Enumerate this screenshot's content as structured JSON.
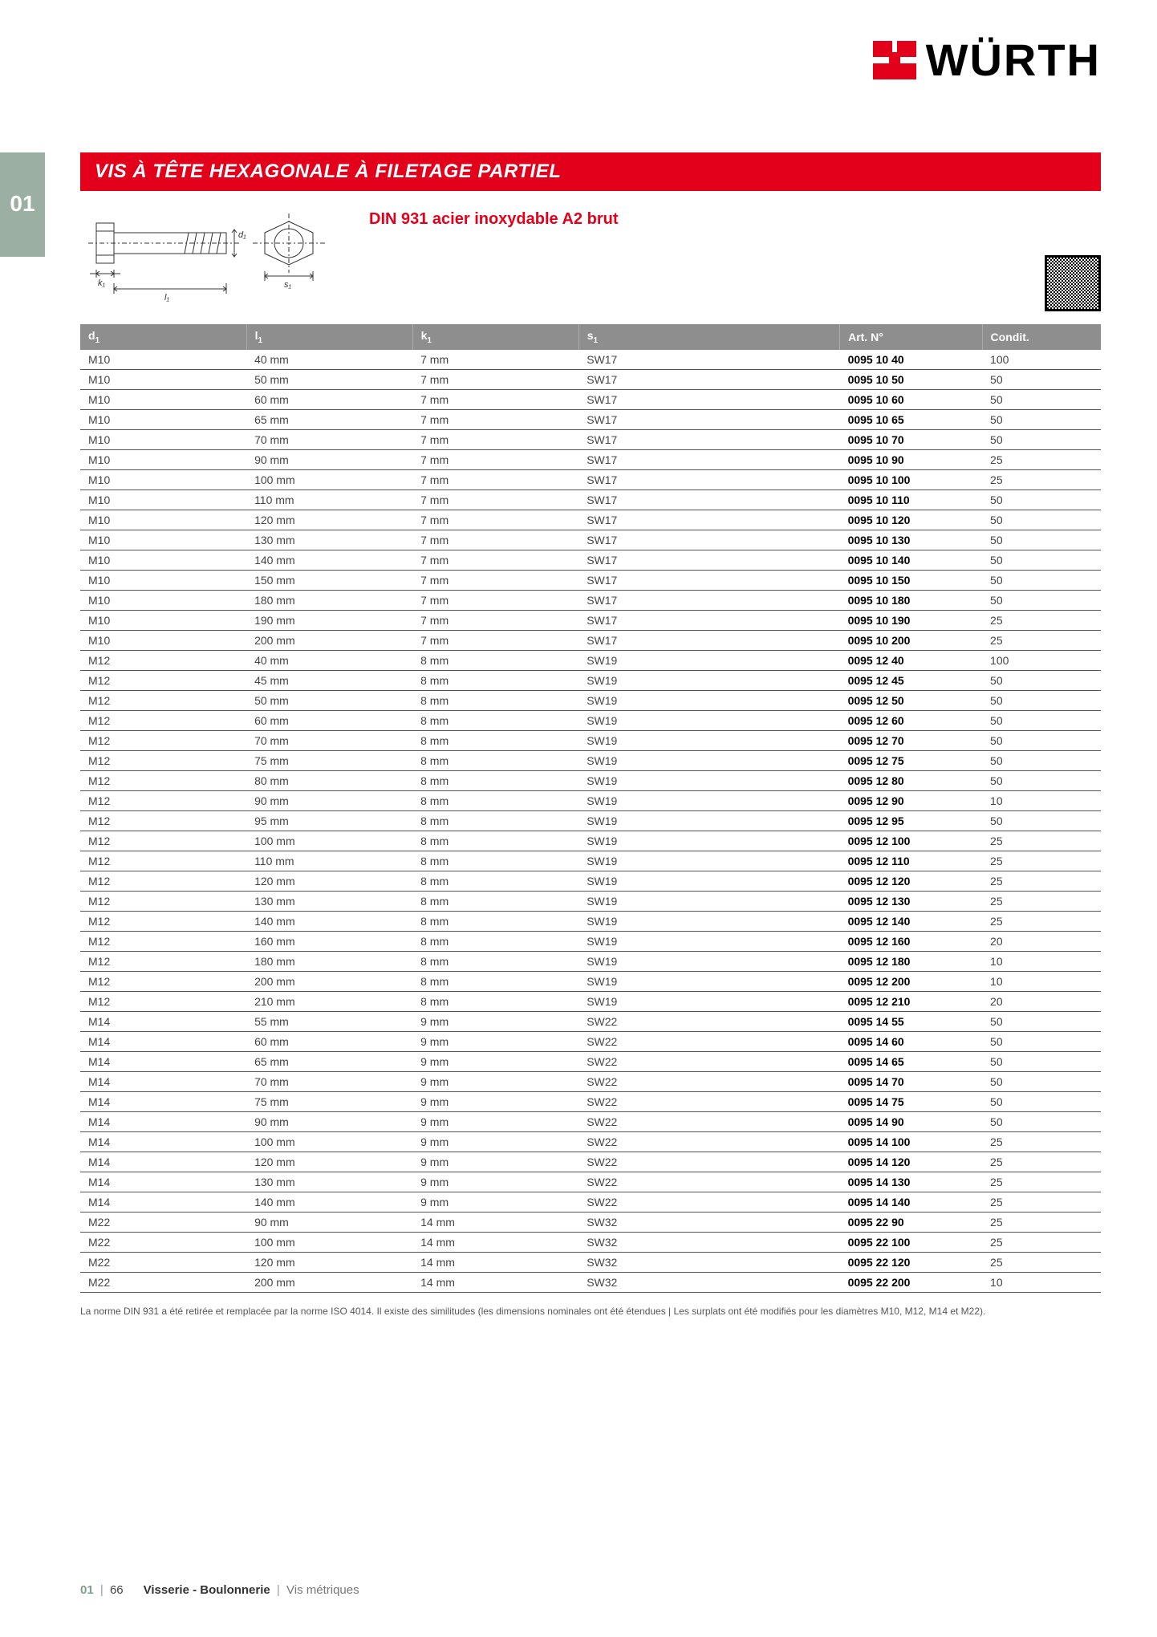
{
  "brand": "WÜRTH",
  "sideTab": "01",
  "titleBar": "VIS À TÊTE HEXAGONALE À FILETAGE PARTIEL",
  "subtitle": "DIN 931 acier inoxydable A2 brut",
  "colors": {
    "brandRed": "#e2001a",
    "headerGrey": "#8e8e8e",
    "tabGreen": "#9bb0a2",
    "text": "#333333",
    "rowBorder": "#555555"
  },
  "table": {
    "headers": {
      "d1": "d",
      "d1_sub": "1",
      "l1": "l",
      "l1_sub": "1",
      "k1": "k",
      "k1_sub": "1",
      "s1": "s",
      "s1_sub": "1",
      "art": "Art. N°",
      "cond": "Condit."
    },
    "rows": [
      {
        "d1": "M10",
        "l1": "40 mm",
        "k1": "7 mm",
        "s1": "SW17",
        "art": "0095 10  40",
        "cond": "100"
      },
      {
        "d1": "M10",
        "l1": "50 mm",
        "k1": "7 mm",
        "s1": "SW17",
        "art": "0095 10  50",
        "cond": "50"
      },
      {
        "d1": "M10",
        "l1": "60 mm",
        "k1": "7 mm",
        "s1": "SW17",
        "art": "0095 10  60",
        "cond": "50"
      },
      {
        "d1": "M10",
        "l1": "65 mm",
        "k1": "7 mm",
        "s1": "SW17",
        "art": "0095 10  65",
        "cond": "50"
      },
      {
        "d1": "M10",
        "l1": "70 mm",
        "k1": "7 mm",
        "s1": "SW17",
        "art": "0095 10  70",
        "cond": "50"
      },
      {
        "d1": "M10",
        "l1": "90 mm",
        "k1": "7 mm",
        "s1": "SW17",
        "art": "0095 10  90",
        "cond": "25"
      },
      {
        "d1": "M10",
        "l1": "100 mm",
        "k1": "7 mm",
        "s1": "SW17",
        "art": "0095 10  100",
        "cond": "25"
      },
      {
        "d1": "M10",
        "l1": "110 mm",
        "k1": "7 mm",
        "s1": "SW17",
        "art": "0095 10  110",
        "cond": "50"
      },
      {
        "d1": "M10",
        "l1": "120 mm",
        "k1": "7 mm",
        "s1": "SW17",
        "art": "0095 10  120",
        "cond": "50"
      },
      {
        "d1": "M10",
        "l1": "130 mm",
        "k1": "7 mm",
        "s1": "SW17",
        "art": "0095 10  130",
        "cond": "50"
      },
      {
        "d1": "M10",
        "l1": "140 mm",
        "k1": "7 mm",
        "s1": "SW17",
        "art": "0095 10  140",
        "cond": "50"
      },
      {
        "d1": "M10",
        "l1": "150 mm",
        "k1": "7 mm",
        "s1": "SW17",
        "art": "0095 10  150",
        "cond": "50"
      },
      {
        "d1": "M10",
        "l1": "180 mm",
        "k1": "7 mm",
        "s1": "SW17",
        "art": "0095 10  180",
        "cond": "50"
      },
      {
        "d1": "M10",
        "l1": "190 mm",
        "k1": "7 mm",
        "s1": "SW17",
        "art": "0095 10  190",
        "cond": "25"
      },
      {
        "d1": "M10",
        "l1": "200 mm",
        "k1": "7 mm",
        "s1": "SW17",
        "art": "0095 10  200",
        "cond": "25"
      },
      {
        "d1": "M12",
        "l1": "40 mm",
        "k1": "8 mm",
        "s1": "SW19",
        "art": "0095 12  40",
        "cond": "100"
      },
      {
        "d1": "M12",
        "l1": "45 mm",
        "k1": "8 mm",
        "s1": "SW19",
        "art": "0095 12  45",
        "cond": "50"
      },
      {
        "d1": "M12",
        "l1": "50 mm",
        "k1": "8 mm",
        "s1": "SW19",
        "art": "0095 12  50",
        "cond": "50"
      },
      {
        "d1": "M12",
        "l1": "60 mm",
        "k1": "8 mm",
        "s1": "SW19",
        "art": "0095 12  60",
        "cond": "50"
      },
      {
        "d1": "M12",
        "l1": "70 mm",
        "k1": "8 mm",
        "s1": "SW19",
        "art": "0095 12  70",
        "cond": "50"
      },
      {
        "d1": "M12",
        "l1": "75 mm",
        "k1": "8 mm",
        "s1": "SW19",
        "art": "0095 12  75",
        "cond": "50"
      },
      {
        "d1": "M12",
        "l1": "80 mm",
        "k1": "8 mm",
        "s1": "SW19",
        "art": "0095 12  80",
        "cond": "50"
      },
      {
        "d1": "M12",
        "l1": "90 mm",
        "k1": "8 mm",
        "s1": "SW19",
        "art": "0095 12  90",
        "cond": "10"
      },
      {
        "d1": "M12",
        "l1": "95 mm",
        "k1": "8 mm",
        "s1": "SW19",
        "art": "0095 12  95",
        "cond": "50"
      },
      {
        "d1": "M12",
        "l1": "100 mm",
        "k1": "8 mm",
        "s1": "SW19",
        "art": "0095 12  100",
        "cond": "25"
      },
      {
        "d1": "M12",
        "l1": "110 mm",
        "k1": "8 mm",
        "s1": "SW19",
        "art": "0095 12  110",
        "cond": "25"
      },
      {
        "d1": "M12",
        "l1": "120 mm",
        "k1": "8 mm",
        "s1": "SW19",
        "art": "0095 12  120",
        "cond": "25"
      },
      {
        "d1": "M12",
        "l1": "130 mm",
        "k1": "8 mm",
        "s1": "SW19",
        "art": "0095 12  130",
        "cond": "25"
      },
      {
        "d1": "M12",
        "l1": "140 mm",
        "k1": "8 mm",
        "s1": "SW19",
        "art": "0095 12  140",
        "cond": "25"
      },
      {
        "d1": "M12",
        "l1": "160 mm",
        "k1": "8 mm",
        "s1": "SW19",
        "art": "0095 12  160",
        "cond": "20"
      },
      {
        "d1": "M12",
        "l1": "180 mm",
        "k1": "8 mm",
        "s1": "SW19",
        "art": "0095 12  180",
        "cond": "10"
      },
      {
        "d1": "M12",
        "l1": "200 mm",
        "k1": "8 mm",
        "s1": "SW19",
        "art": "0095 12  200",
        "cond": "10"
      },
      {
        "d1": "M12",
        "l1": "210 mm",
        "k1": "8 mm",
        "s1": "SW19",
        "art": "0095 12  210",
        "cond": "20"
      },
      {
        "d1": "M14",
        "l1": "55 mm",
        "k1": "9 mm",
        "s1": "SW22",
        "art": "0095 14  55",
        "cond": "50"
      },
      {
        "d1": "M14",
        "l1": "60 mm",
        "k1": "9 mm",
        "s1": "SW22",
        "art": "0095 14  60",
        "cond": "50"
      },
      {
        "d1": "M14",
        "l1": "65 mm",
        "k1": "9 mm",
        "s1": "SW22",
        "art": "0095 14  65",
        "cond": "50"
      },
      {
        "d1": "M14",
        "l1": "70 mm",
        "k1": "9 mm",
        "s1": "SW22",
        "art": "0095 14  70",
        "cond": "50"
      },
      {
        "d1": "M14",
        "l1": "75 mm",
        "k1": "9 mm",
        "s1": "SW22",
        "art": "0095 14  75",
        "cond": "50"
      },
      {
        "d1": "M14",
        "l1": "90 mm",
        "k1": "9 mm",
        "s1": "SW22",
        "art": "0095 14  90",
        "cond": "50"
      },
      {
        "d1": "M14",
        "l1": "100 mm",
        "k1": "9 mm",
        "s1": "SW22",
        "art": "0095 14  100",
        "cond": "25"
      },
      {
        "d1": "M14",
        "l1": "120 mm",
        "k1": "9 mm",
        "s1": "SW22",
        "art": "0095 14  120",
        "cond": "25"
      },
      {
        "d1": "M14",
        "l1": "130 mm",
        "k1": "9 mm",
        "s1": "SW22",
        "art": "0095 14  130",
        "cond": "25"
      },
      {
        "d1": "M14",
        "l1": "140 mm",
        "k1": "9 mm",
        "s1": "SW22",
        "art": "0095 14  140",
        "cond": "25"
      },
      {
        "d1": "M22",
        "l1": "90 mm",
        "k1": "14 mm",
        "s1": "SW32",
        "art": "0095 22  90",
        "cond": "25"
      },
      {
        "d1": "M22",
        "l1": "100 mm",
        "k1": "14 mm",
        "s1": "SW32",
        "art": "0095 22  100",
        "cond": "25"
      },
      {
        "d1": "M22",
        "l1": "120 mm",
        "k1": "14 mm",
        "s1": "SW32",
        "art": "0095 22  120",
        "cond": "25"
      },
      {
        "d1": "M22",
        "l1": "200 mm",
        "k1": "14 mm",
        "s1": "SW32",
        "art": "0095 22  200",
        "cond": "10"
      }
    ]
  },
  "note": "La norme DIN 931 a été retirée et remplacée par la norme ISO 4014. Il existe des similitudes (les dimensions nominales ont été étendues | Les surplats ont été modifiés pour les diamètres M10, M12, M14 et M22).",
  "footer": {
    "section": "01",
    "page": "66",
    "cat1": "Visserie - Boulonnerie",
    "cat2": "Vis métriques"
  },
  "diagram": {
    "labels": {
      "k1": "k₁",
      "l1": "l₁",
      "d1": "d₁",
      "s1": "s₁"
    }
  }
}
